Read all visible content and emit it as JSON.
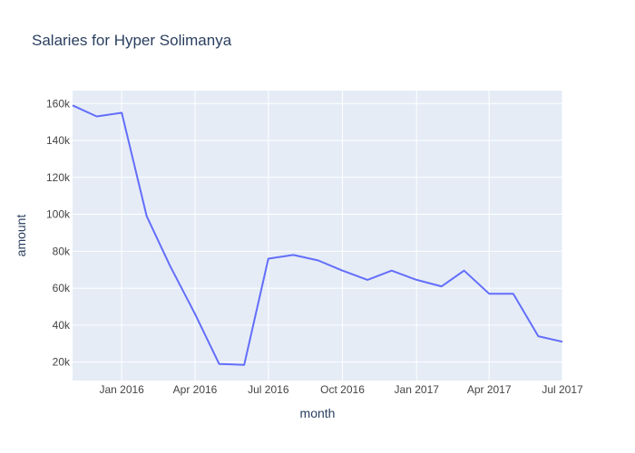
{
  "chart_data": {
    "type": "line",
    "title": "Salaries for Hyper Solimanya",
    "xlabel": "month",
    "ylabel": "amount",
    "x_tick_labels": [
      "Jan 2016",
      "Apr 2016",
      "Jul 2016",
      "Oct 2016",
      "Jan 2017",
      "Apr 2017",
      "Jul 2017"
    ],
    "x_ticks": [
      "2016-01-01",
      "2016-04-01",
      "2016-07-01",
      "2016-10-01",
      "2017-01-01",
      "2017-04-01",
      "2017-07-01"
    ],
    "y_tick_labels": [
      "20k",
      "40k",
      "60k",
      "80k",
      "100k",
      "120k",
      "140k",
      "160k"
    ],
    "y_ticks": [
      20000,
      40000,
      60000,
      80000,
      100000,
      120000,
      140000,
      160000
    ],
    "xlim": [
      "2015-11-01",
      "2017-07-01"
    ],
    "ylim": [
      10000,
      167000
    ],
    "grid": true,
    "colors": {
      "plot_bg": "#e5ecf6",
      "grid": "#ffffff",
      "line": "#636efa",
      "text": "#2a3f5f",
      "tick_text": "#444444"
    },
    "series": [
      {
        "x": [
          "2015-11-01",
          "2015-12-01",
          "2016-01-01",
          "2016-02-01",
          "2016-03-01",
          "2016-04-01",
          "2016-05-01",
          "2016-06-01",
          "2016-07-01",
          "2016-08-01",
          "2016-09-01",
          "2016-10-01",
          "2016-11-01",
          "2016-12-01",
          "2017-01-01",
          "2017-02-01",
          "2017-03-01",
          "2017-04-01",
          "2017-05-01",
          "2017-06-01",
          "2017-07-01"
        ],
        "y": [
          159000,
          153000,
          155000,
          99000,
          72000,
          46000,
          19000,
          18500,
          76000,
          78000,
          75000,
          69500,
          64500,
          69500,
          64500,
          61000,
          69500,
          57000,
          57000,
          34000,
          31000
        ]
      }
    ]
  }
}
